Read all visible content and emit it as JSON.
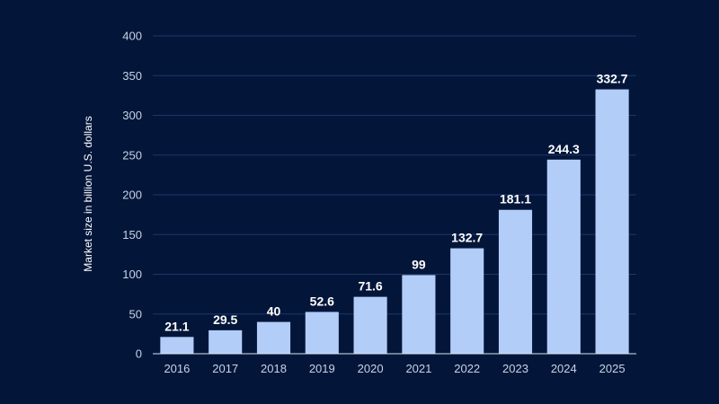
{
  "chart_data": {
    "type": "bar",
    "title": "",
    "xlabel": "",
    "ylabel": "Market size in billion U.S. dollars",
    "categories": [
      "2016",
      "2017",
      "2018",
      "2019",
      "2020",
      "2021",
      "2022",
      "2023",
      "2024",
      "2025"
    ],
    "values": [
      21.1,
      29.5,
      40,
      52.6,
      71.6,
      99,
      132.7,
      181.1,
      244.3,
      332.7
    ],
    "value_labels": [
      "21.1",
      "29.5",
      "40",
      "52.6",
      "71.6",
      "99",
      "132.7",
      "181.1",
      "244.3",
      "332.7"
    ],
    "ylim": [
      0,
      400
    ],
    "yticks": [
      0,
      50,
      100,
      150,
      200,
      250,
      300,
      350,
      400
    ],
    "grid": true,
    "legend": "none",
    "colors": {
      "background": "#03163a",
      "bar": "#b3cdf9",
      "grid": "#1d3766",
      "axis": "#d9e2f2",
      "tick_text": "#c8d2e5",
      "label_text": "#ffffff"
    }
  }
}
